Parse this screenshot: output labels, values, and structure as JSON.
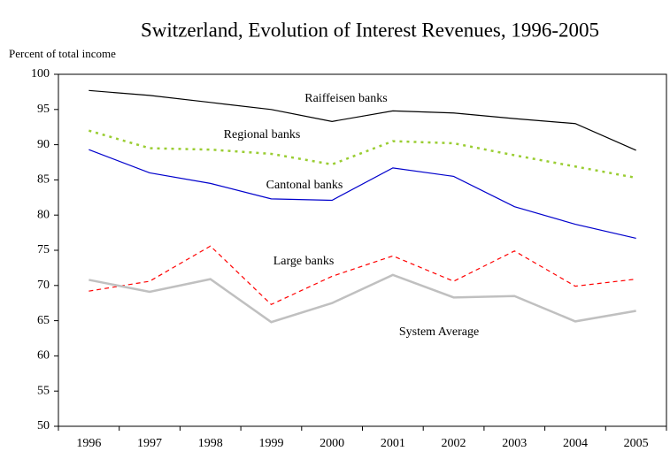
{
  "chart_data": {
    "type": "line",
    "title": "Switzerland, Evolution of Interest Revenues, 1996-2005",
    "y_label": "Percent of total income",
    "categories": [
      "1996",
      "1997",
      "1998",
      "1999",
      "2000",
      "2001",
      "2002",
      "2003",
      "2004",
      "2005"
    ],
    "series": [
      {
        "name": "Raiffeisen banks",
        "color": "#000000",
        "style": "solid",
        "values": [
          97.7,
          97.0,
          96.0,
          95.0,
          93.3,
          94.8,
          94.5,
          93.7,
          93.0,
          89.2
        ]
      },
      {
        "name": "Regional banks",
        "color": "#9acd32",
        "style": "dotted",
        "values": [
          92.0,
          89.5,
          89.3,
          88.7,
          87.2,
          90.5,
          90.2,
          88.5,
          86.9,
          85.3
        ]
      },
      {
        "name": "Cantonal banks",
        "color": "#0000cc",
        "style": "solid",
        "values": [
          89.3,
          86.0,
          84.5,
          82.3,
          82.1,
          86.7,
          85.5,
          81.2,
          78.7,
          76.7
        ]
      },
      {
        "name": "Large banks",
        "color": "#ff0000",
        "style": "dashed",
        "values": [
          69.2,
          70.6,
          75.6,
          67.3,
          71.3,
          74.2,
          70.6,
          74.9,
          69.9,
          70.9
        ]
      },
      {
        "name": "System Average",
        "color": "#c0c0c0",
        "style": "thick",
        "values": [
          70.8,
          69.1,
          70.9,
          64.8,
          67.5,
          71.5,
          68.3,
          68.5,
          64.9,
          66.4
        ]
      }
    ],
    "ylim": [
      50,
      100
    ],
    "yticks": [
      50,
      55,
      60,
      65,
      70,
      75,
      80,
      85,
      90,
      95,
      100
    ],
    "grid": false
  }
}
